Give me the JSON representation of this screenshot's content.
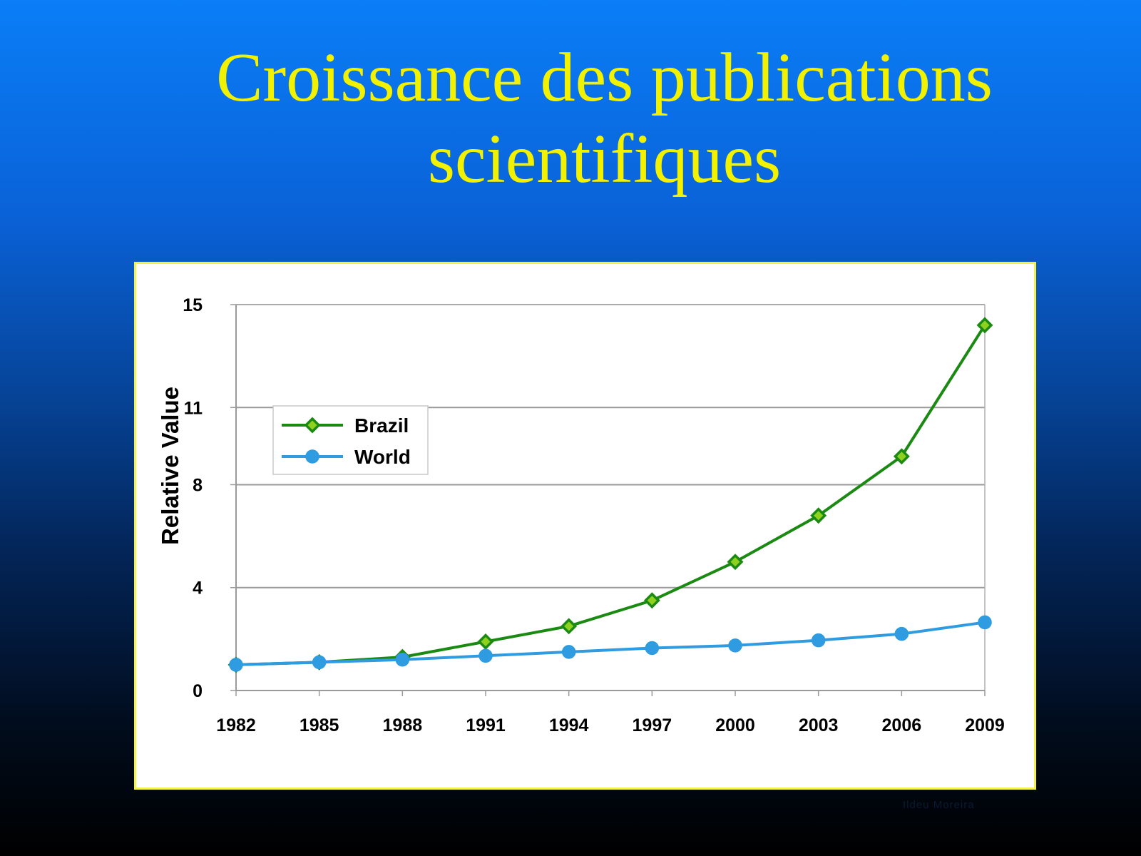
{
  "slide": {
    "title_line1": "Croissance des publications",
    "title_line2": "scientifiques",
    "watermark": "Ildeu Moreira"
  },
  "colors": {
    "title": "#f2f200",
    "brazil_line": "#1b8a12",
    "brazil_marker_fill": "#8fd11f",
    "world_line": "#2f9be0",
    "world_marker": "#2f9be0",
    "frame_border": "#f3f14a"
  },
  "chart_data": {
    "type": "line",
    "title": "",
    "xlabel": "",
    "ylabel": "Relative Value",
    "x": [
      "1982",
      "1985",
      "1988",
      "1991",
      "1994",
      "1997",
      "2000",
      "2003",
      "2006",
      "2009"
    ],
    "ylim": [
      0,
      15
    ],
    "yticks": [
      "0",
      "4",
      "8",
      "11",
      "15"
    ],
    "grid": true,
    "legend_position": "upper-left",
    "series": [
      {
        "name": "Brazil",
        "marker": "diamond",
        "values": [
          1.0,
          1.1,
          1.3,
          1.9,
          2.5,
          3.5,
          5.0,
          6.8,
          9.1,
          14.2
        ]
      },
      {
        "name": "World",
        "marker": "circle",
        "values": [
          1.0,
          1.1,
          1.2,
          1.35,
          1.5,
          1.65,
          1.75,
          1.95,
          2.2,
          2.65
        ]
      }
    ]
  }
}
